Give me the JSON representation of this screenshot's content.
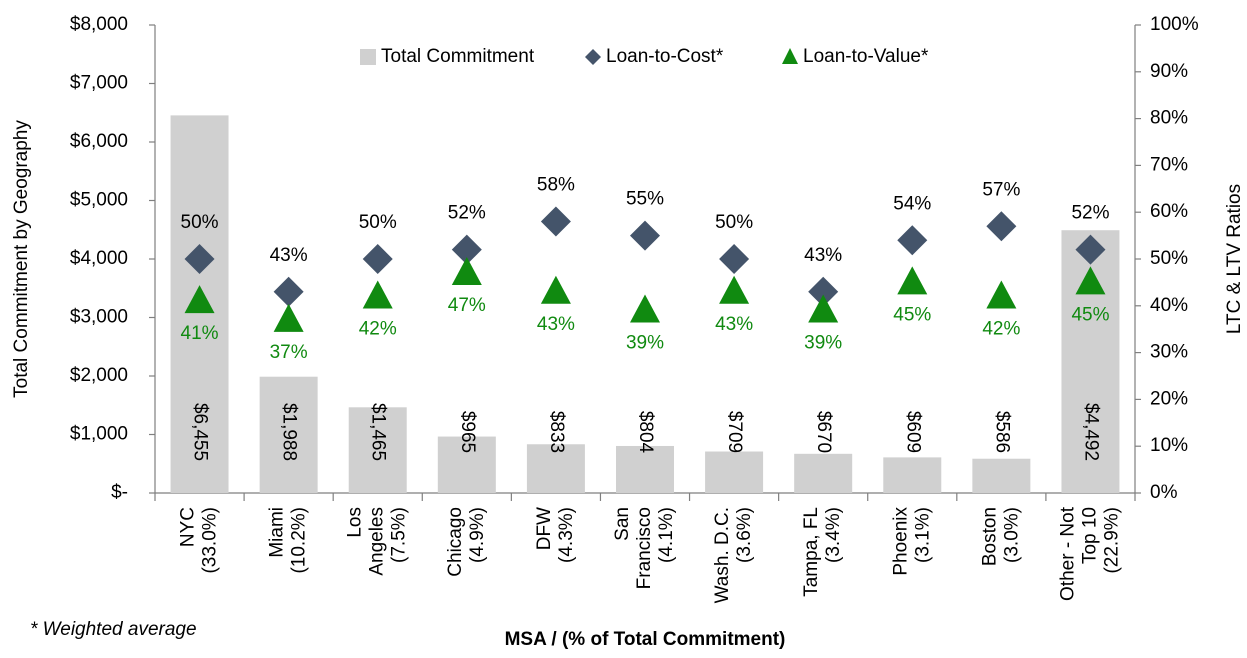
{
  "chart_data": {
    "type": "bar-scatter-combo",
    "y_label": "Total Commitment by Geography",
    "y2_label": "LTC & LTV Ratios",
    "x_label": "MSA / (% of Total Commitment)",
    "footnote": "* Weighted average",
    "categories": [
      [
        "NYC",
        "(33.0%)"
      ],
      [
        "Miami",
        "(10.2%)"
      ],
      [
        "Los",
        "Angeles",
        "(7.5%)"
      ],
      [
        "Chicago",
        "(4.9%)"
      ],
      [
        "DFW",
        "(4.3%)"
      ],
      [
        "San",
        "Francisco",
        "(4.1%)"
      ],
      [
        "Wash. D.C.",
        "(3.6%)"
      ],
      [
        "Tampa, FL",
        "(3.4%)"
      ],
      [
        "Phoenix",
        "(3.1%)"
      ],
      [
        "Boston",
        "(3.0%)"
      ],
      [
        "Other - Not",
        "Top 10",
        "(22.9%)"
      ]
    ],
    "series": [
      {
        "name": "Total Commitment",
        "color": "#d0d0d0",
        "marker": "bar",
        "values": [
          6455,
          1988,
          1465,
          965,
          833,
          804,
          709,
          670,
          609,
          586,
          4492
        ],
        "value_labels": [
          "$6,455",
          "$1,988",
          "$1,465",
          "$965",
          "$833",
          "$804",
          "$709",
          "$670",
          "$609",
          "$586",
          "$4,492"
        ]
      },
      {
        "name": "Loan-to-Cost*",
        "color": "#44546a",
        "marker": "diamond",
        "axis": "y2",
        "values": [
          50,
          43,
          50,
          52,
          58,
          55,
          50,
          43,
          54,
          57,
          52
        ],
        "value_labels": [
          "50%",
          "43%",
          "50%",
          "52%",
          "58%",
          "55%",
          "50%",
          "43%",
          "54%",
          "57%",
          "52%"
        ]
      },
      {
        "name": "Loan-to-Value*",
        "color": "#108a10",
        "marker": "triangle",
        "axis": "y2",
        "values": [
          41,
          37,
          42,
          47,
          43,
          39,
          43,
          39,
          45,
          42,
          45
        ],
        "value_labels": [
          "41%",
          "37%",
          "42%",
          "47%",
          "43%",
          "39%",
          "43%",
          "39%",
          "45%",
          "42%",
          "45%"
        ]
      }
    ],
    "ylim": [
      0,
      8000
    ],
    "yticks": [
      {
        "value": 0,
        "label": "$-"
      },
      {
        "value": 1000,
        "label": "$1,000"
      },
      {
        "value": 2000,
        "label": "$2,000"
      },
      {
        "value": 3000,
        "label": "$3,000"
      },
      {
        "value": 4000,
        "label": "$4,000"
      },
      {
        "value": 5000,
        "label": "$5,000"
      },
      {
        "value": 6000,
        "label": "$6,000"
      },
      {
        "value": 7000,
        "label": "$7,000"
      },
      {
        "value": 8000,
        "label": "$8,000"
      }
    ],
    "y2lim": [
      0,
      100
    ],
    "y2ticks": [
      {
        "value": 0,
        "label": "0%"
      },
      {
        "value": 10,
        "label": "10%"
      },
      {
        "value": 20,
        "label": "20%"
      },
      {
        "value": 30,
        "label": "30%"
      },
      {
        "value": 40,
        "label": "40%"
      },
      {
        "value": 50,
        "label": "50%"
      },
      {
        "value": 60,
        "label": "60%"
      },
      {
        "value": 70,
        "label": "70%"
      },
      {
        "value": 80,
        "label": "80%"
      },
      {
        "value": 90,
        "label": "90%"
      },
      {
        "value": 100,
        "label": "100%"
      }
    ],
    "grid": false,
    "legend": "top"
  }
}
